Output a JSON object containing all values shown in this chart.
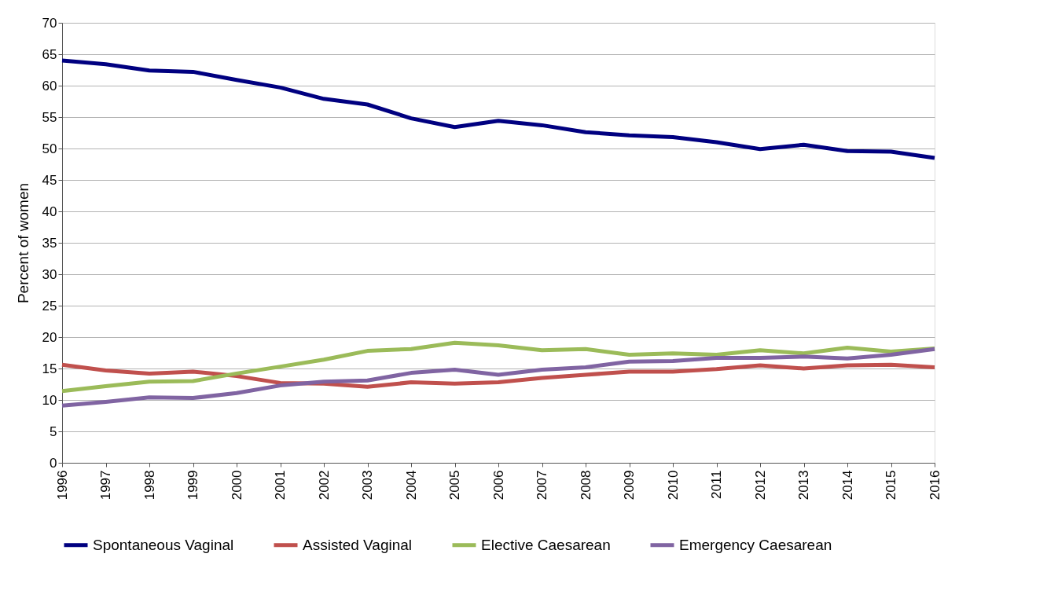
{
  "chart_data": {
    "type": "line",
    "ylabel": "Percent of women",
    "categories": [
      "1996",
      "1997",
      "1998",
      "1999",
      "2000",
      "2001",
      "2002",
      "2003",
      "2004",
      "2005",
      "2006",
      "2007",
      "2008",
      "2009",
      "2010",
      "2011",
      "2012",
      "2013",
      "2014",
      "2015",
      "2016"
    ],
    "series": [
      {
        "name": "Spontaneous Vaginal",
        "color": "#000080",
        "values": [
          64.0,
          63.4,
          62.4,
          62.2,
          60.9,
          59.7,
          57.9,
          57.0,
          54.8,
          53.4,
          54.4,
          53.7,
          52.6,
          52.1,
          51.8,
          51.0,
          49.9,
          50.6,
          49.6,
          49.5,
          48.5
        ]
      },
      {
        "name": "Assisted Vaginal",
        "color": "#c0504d",
        "values": [
          15.6,
          14.7,
          14.2,
          14.5,
          13.8,
          12.7,
          12.6,
          12.1,
          12.8,
          12.6,
          12.8,
          13.5,
          14.0,
          14.5,
          14.5,
          14.9,
          15.5,
          15.0,
          15.5,
          15.6,
          15.2
        ]
      },
      {
        "name": "Elective Caesarean",
        "color": "#9bbb59",
        "values": [
          11.4,
          12.2,
          12.9,
          13.0,
          14.2,
          15.3,
          16.4,
          17.8,
          18.1,
          19.1,
          18.7,
          17.9,
          18.1,
          17.2,
          17.4,
          17.2,
          17.9,
          17.4,
          18.3,
          17.7,
          18.2
        ]
      },
      {
        "name": "Emergency Caesarean",
        "color": "#8064a2",
        "values": [
          9.1,
          9.7,
          10.4,
          10.3,
          11.1,
          12.3,
          12.9,
          13.1,
          14.3,
          14.8,
          14.0,
          14.8,
          15.2,
          16.1,
          16.2,
          16.7,
          16.7,
          16.9,
          16.6,
          17.2,
          18.1
        ]
      }
    ],
    "ylim": [
      0,
      70
    ],
    "yticks": [
      0,
      5,
      10,
      15,
      20,
      25,
      30,
      35,
      40,
      45,
      50,
      55,
      60,
      65,
      70
    ],
    "grid": "y",
    "legend": "bottom",
    "marker": "none",
    "line_style": "solid"
  }
}
